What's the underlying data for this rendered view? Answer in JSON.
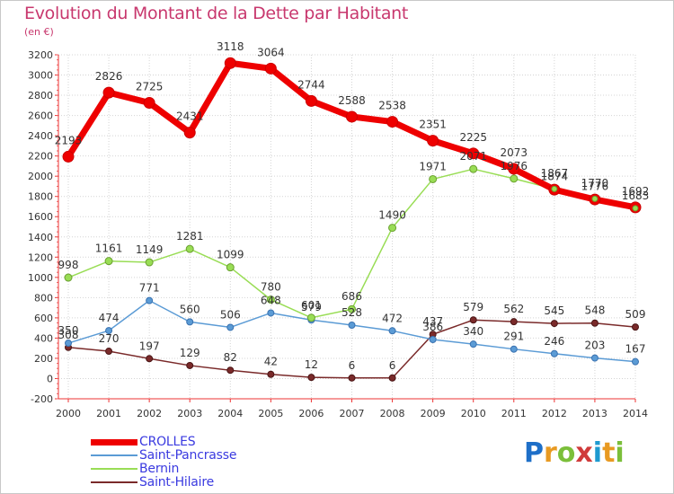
{
  "title": "Evolution du Montant de la Dette par Habitant",
  "subtitle": "(en €)",
  "logo": {
    "text": "Proxiti",
    "letters": [
      {
        "ch": "P",
        "color": "#1e6fc8"
      },
      {
        "ch": "r",
        "color": "#e89a22"
      },
      {
        "ch": "o",
        "color": "#7bbf3a"
      },
      {
        "ch": "x",
        "color": "#d03a3a"
      },
      {
        "ch": "i",
        "color": "#1e9ad0"
      },
      {
        "ch": "t",
        "color": "#e89a22"
      },
      {
        "ch": "i",
        "color": "#7bbf3a"
      }
    ]
  },
  "chart_data": {
    "type": "line",
    "title": "Evolution du Montant de la Dette par Habitant",
    "ylabel": "(en €)",
    "xlabel": "",
    "ylim": [
      -200,
      3200
    ],
    "yticks": [
      -200,
      0,
      200,
      400,
      600,
      800,
      1000,
      1200,
      1400,
      1600,
      1800,
      2000,
      2200,
      2400,
      2600,
      2800,
      3000,
      3200
    ],
    "x": [
      "2000",
      "2001",
      "2002",
      "2003",
      "2004",
      "2005",
      "2006",
      "2007",
      "2008",
      "2009",
      "2010",
      "2011",
      "2012",
      "2013",
      "2014"
    ],
    "grid": true,
    "series": [
      {
        "name": "Saint-Hilaire",
        "color": "#7a2a2a",
        "values": [
          308,
          270,
          197,
          129,
          82,
          42,
          12,
          6,
          6,
          437,
          579,
          562,
          545,
          548,
          509
        ]
      },
      {
        "name": "Saint-Pancrasse",
        "color": "#5b9bd5",
        "values": [
          350,
          474,
          771,
          560,
          506,
          648,
          579,
          528,
          472,
          386,
          340,
          291,
          246,
          203,
          167
        ]
      },
      {
        "name": "Bernin",
        "color": "#99dd55",
        "values": [
          998,
          1161,
          1149,
          1281,
          1099,
          780,
          601,
          686,
          1490,
          1971,
          2071,
          1976,
          1874,
          1776,
          1683
        ]
      },
      {
        "name": "CROLLES",
        "color": "#ee0000",
        "values": [
          2193,
          2826,
          2725,
          2431,
          3118,
          3064,
          2744,
          2588,
          2538,
          2351,
          2225,
          2073,
          1867,
          1770,
          1692
        ]
      }
    ],
    "legend": {
      "placement": "bottom-left",
      "entries": [
        "CROLLES",
        "Saint-Pancrasse",
        "Bernin",
        "Saint-Hilaire"
      ]
    }
  }
}
